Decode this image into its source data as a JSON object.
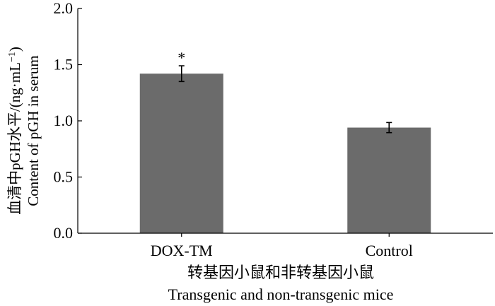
{
  "chart_data": {
    "type": "bar",
    "categories": [
      "DOX-TM",
      "Control"
    ],
    "values": [
      1.42,
      0.94
    ],
    "errors": [
      0.07,
      0.045
    ],
    "significance": [
      "*",
      ""
    ],
    "ylim": [
      0,
      2.0
    ],
    "yticks": [
      "0.0",
      "0.5",
      "1.0",
      "1.5",
      "2.0"
    ],
    "ylabel": {
      "line1": "血清中pGH水平/(ng·mL",
      "line1_sup": "−1",
      "line1_end": ")",
      "line2": "Content of pGH in serum"
    },
    "xlabel": {
      "line1": "转基因小鼠和非转基因小鼠",
      "line2": "Transgenic and non-transgenic mice"
    },
    "bar_color": "#6b6b6b",
    "grid": false
  }
}
